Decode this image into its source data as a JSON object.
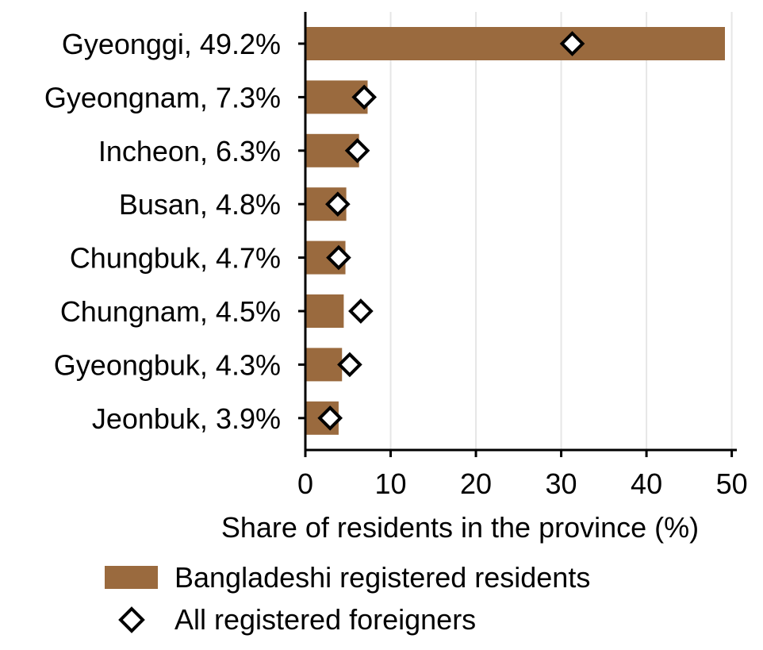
{
  "chart_data": {
    "type": "bar",
    "orientation": "horizontal",
    "categories": [
      "Gyeonggi, 49.2%",
      "Gyeongnam, 7.3%",
      "Incheon, 6.3%",
      "Busan, 4.8%",
      "Chungbuk, 4.7%",
      "Chungnam, 4.5%",
      "Gyeongbuk, 4.3%",
      "Jeonbuk, 3.9%"
    ],
    "series": [
      {
        "name": "Bangladeshi registered residents",
        "mark": "bar",
        "color": "#9a6a3e",
        "values": [
          49.2,
          7.3,
          6.3,
          4.8,
          4.7,
          4.5,
          4.3,
          3.9
        ]
      },
      {
        "name": "All registered foreigners",
        "mark": "diamond",
        "color": "#ffffff",
        "values": [
          31.3,
          6.9,
          6.1,
          3.8,
          3.9,
          6.5,
          5.2,
          2.9
        ]
      }
    ],
    "xlabel": "Share of residents in the province (%)",
    "ylabel": "",
    "xlim": [
      0,
      50
    ],
    "xticks": [
      0,
      10,
      20,
      30,
      40,
      50
    ],
    "grid": "vertical",
    "legend_position": "bottom"
  }
}
